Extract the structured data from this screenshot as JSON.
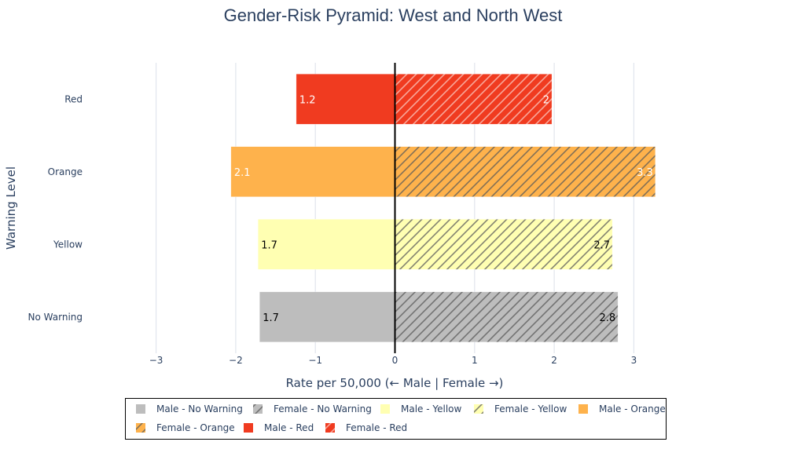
{
  "chart_data": {
    "type": "bar",
    "orientation": "horizontal",
    "barmode": "relative",
    "title": "Gender-Risk Pyramid: West and North West",
    "xlabel": "Rate per 50,000 (← Male | Female →)",
    "ylabel": "Warning Level",
    "xlim": [
      -3.3,
      3.3
    ],
    "xticks": [
      -3,
      -2,
      -1,
      0,
      1,
      2,
      3
    ],
    "xtick_labels": [
      "−3",
      "−2",
      "−1",
      "0",
      "1",
      "2",
      "3"
    ],
    "categories": [
      "No Warning",
      "Yellow",
      "Orange",
      "Red"
    ],
    "grid": true,
    "legend_position": "bottom",
    "series": [
      {
        "name": "Male - No Warning",
        "category": "No Warning",
        "gender": "male",
        "value": -1.7,
        "label": "1.7",
        "color": "#bdbdbd",
        "pattern": false,
        "label_color": "#000000"
      },
      {
        "name": "Female - No Warning",
        "category": "No Warning",
        "gender": "female",
        "value": 2.8,
        "label": "2.8",
        "color": "#bdbdbd",
        "pattern": true,
        "label_color": "#000000"
      },
      {
        "name": "Male - Yellow",
        "category": "Yellow",
        "gender": "male",
        "value": -1.72,
        "label": "1.7",
        "color": "#ffffb2",
        "pattern": false,
        "label_color": "#000000"
      },
      {
        "name": "Female - Yellow",
        "category": "Yellow",
        "gender": "female",
        "value": 2.73,
        "label": "2.7",
        "color": "#ffffb2",
        "pattern": true,
        "label_color": "#000000"
      },
      {
        "name": "Male - Orange",
        "category": "Orange",
        "gender": "male",
        "value": -2.06,
        "label": "2.1",
        "color": "#feb24c",
        "pattern": false,
        "label_color": "#ffffff"
      },
      {
        "name": "Female - Orange",
        "category": "Orange",
        "gender": "female",
        "value": 3.27,
        "label": "3.3",
        "color": "#feb24c",
        "pattern": true,
        "label_color": "#ffffff"
      },
      {
        "name": "Male - Red",
        "category": "Red",
        "gender": "male",
        "value": -1.24,
        "label": "1.2",
        "color": "#f03b20",
        "pattern": false,
        "label_color": "#ffffff"
      },
      {
        "name": "Female - Red",
        "category": "Red",
        "gender": "female",
        "value": 1.97,
        "label": "2",
        "color": "#f03b20",
        "pattern": true,
        "label_color": "#ffffff"
      }
    ]
  }
}
